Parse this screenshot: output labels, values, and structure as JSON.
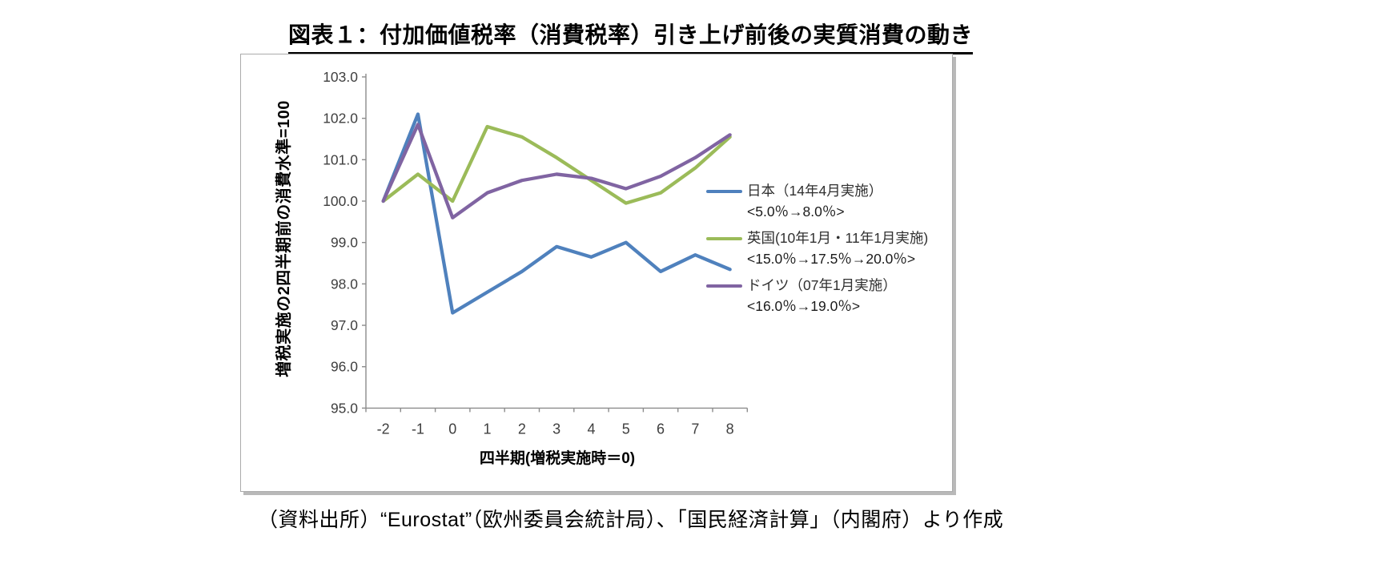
{
  "title": "図表１：付加価値税率（消費税率）引き上げ前後の実質消費の動き",
  "source_note": "（資料出所）“Eurostat”（欧州委員会統計局）、「国民経済計算」（内閣府）より作成",
  "colors": {
    "japan_line": "#4F81BD",
    "uk_line": "#9BBB59",
    "germany_line": "#8064A2",
    "axis": "#8c8c8c",
    "tick_text": "#3f3f3f"
  },
  "chart_data": {
    "type": "line",
    "title": "図表１：付加価値税率（消費税率）引き上げ前後の実質消費の動き",
    "xlabel": "四半期(増税実施時＝0)",
    "ylabel": "増税実施の2四半期前の消費水準=100",
    "categories": [
      -2,
      -1,
      0,
      1,
      2,
      3,
      4,
      5,
      6,
      7,
      8
    ],
    "ylim": [
      95.0,
      103.0
    ],
    "ytick_step": 1.0,
    "ytick_labels": [
      "95.0",
      "96.0",
      "97.0",
      "98.0",
      "99.0",
      "100.0",
      "101.0",
      "102.0",
      "103.0"
    ],
    "grid": false,
    "legend_position": "right",
    "series": [
      {
        "id": "japan",
        "name": "日本（14年4月実施）",
        "rate_change": "<5.0％→8.0％>",
        "color": "#4F81BD",
        "values": [
          100.0,
          102.1,
          97.3,
          97.8,
          98.3,
          98.9,
          98.65,
          99.0,
          98.3,
          98.7,
          98.35
        ]
      },
      {
        "id": "uk",
        "name": "英国(10年1月・11年1月実施)",
        "rate_change": "<15.0％→17.5％→20.0％>",
        "color": "#9BBB59",
        "values": [
          100.0,
          100.65,
          100.0,
          101.8,
          101.55,
          101.05,
          100.5,
          99.95,
          100.2,
          100.8,
          101.55
        ]
      },
      {
        "id": "germany",
        "name": "ドイツ（07年1月実施）",
        "rate_change": "<16.0％→19.0％>",
        "color": "#8064A2",
        "values": [
          100.0,
          101.85,
          99.6,
          100.2,
          100.5,
          100.65,
          100.55,
          100.3,
          100.6,
          101.05,
          101.6
        ]
      }
    ]
  }
}
